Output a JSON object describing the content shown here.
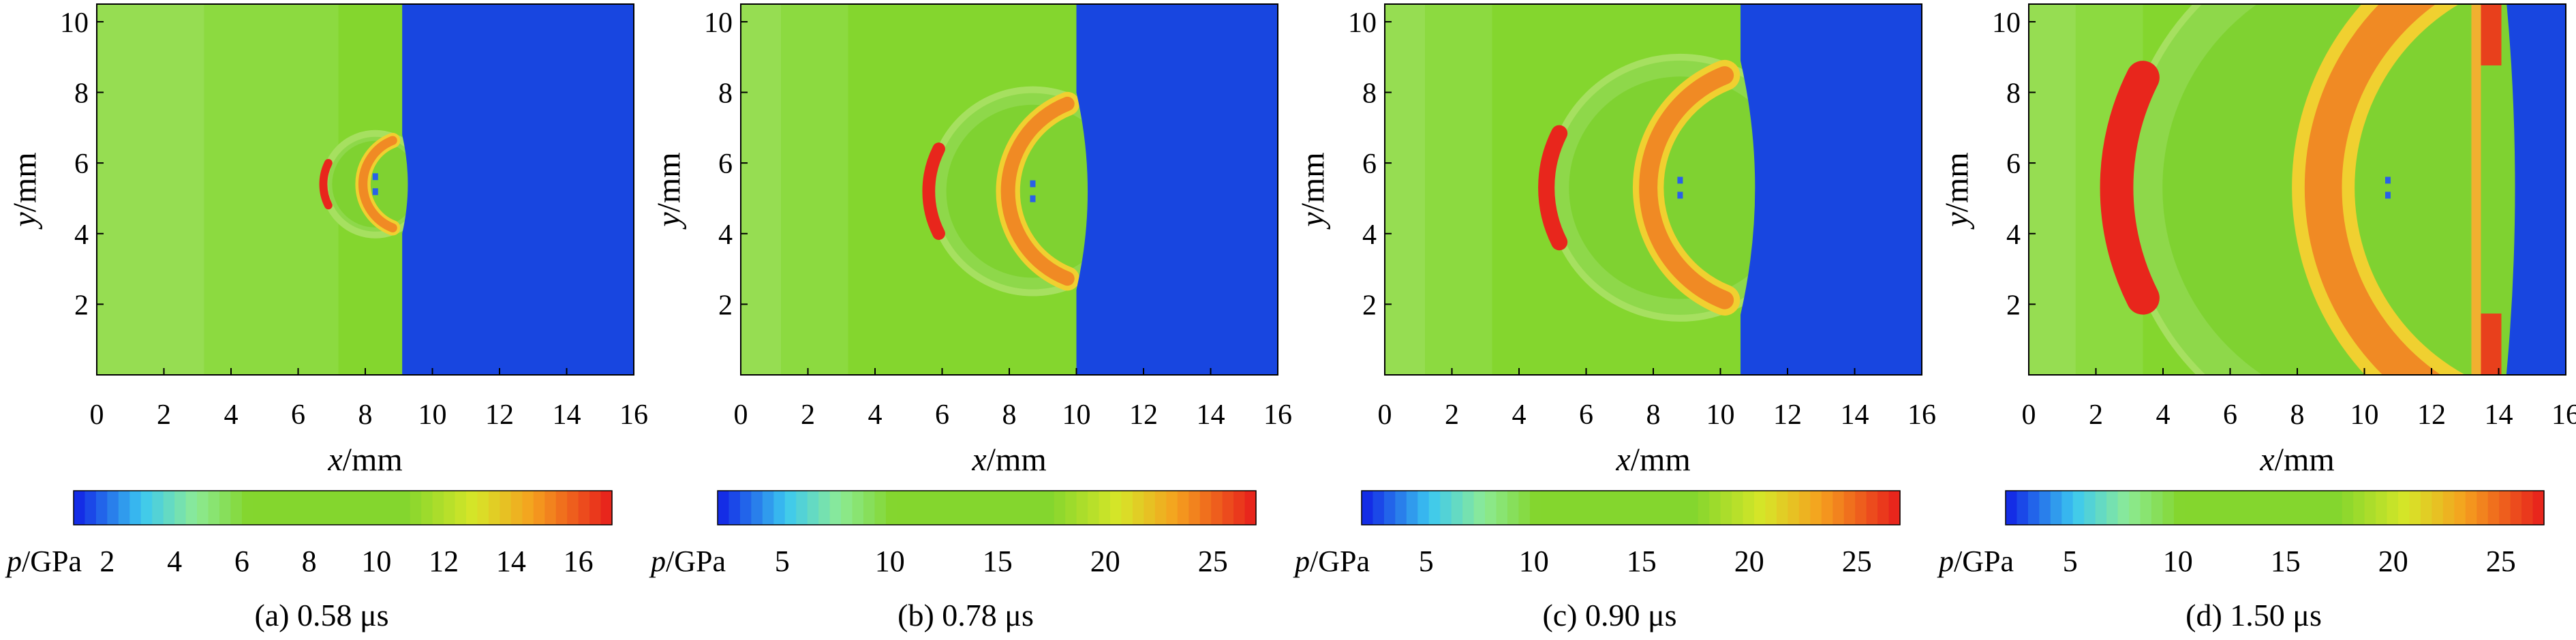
{
  "figure": {
    "panels": [
      {
        "caption": "(a) 0.58 μs",
        "x_tick_labels": [
          "0",
          "2",
          "4",
          "6",
          "8",
          "10",
          "12",
          "14",
          "16"
        ],
        "y_tick_labels": [
          "2",
          "4",
          "6",
          "8",
          "10"
        ],
        "colorbar_ticks": [
          "2",
          "4",
          "6",
          "8",
          "10",
          "12",
          "14",
          "16"
        ]
      },
      {
        "caption": "(b) 0.78 μs",
        "x_tick_labels": [
          "0",
          "2",
          "4",
          "6",
          "8",
          "10",
          "12",
          "14",
          "16"
        ],
        "y_tick_labels": [
          "2",
          "4",
          "6",
          "8",
          "10"
        ],
        "colorbar_ticks": [
          "5",
          "10",
          "15",
          "20",
          "25"
        ]
      },
      {
        "caption": "(c) 0.90 μs",
        "x_tick_labels": [
          "0",
          "2",
          "4",
          "6",
          "8",
          "10",
          "12",
          "14",
          "16"
        ],
        "y_tick_labels": [
          "2",
          "4",
          "6",
          "8",
          "10"
        ],
        "colorbar_ticks": [
          "5",
          "10",
          "15",
          "20",
          "25"
        ]
      },
      {
        "caption": "(d) 1.50 μs",
        "x_tick_labels": [
          "0",
          "2",
          "4",
          "6",
          "8",
          "10",
          "12",
          "14",
          "16"
        ],
        "y_tick_labels": [
          "2",
          "4",
          "6",
          "8",
          "10"
        ],
        "colorbar_ticks": [
          "5",
          "10",
          "15",
          "20",
          "25"
        ]
      }
    ],
    "xlabel_var": "x",
    "xlabel_unit": "/mm",
    "ylabel_var": "y",
    "ylabel_unit": "/mm",
    "colorbar_var": "p",
    "colorbar_unit": "/GPa",
    "colors": {
      "background_field": "#84d62e",
      "right_region": "#1846e0",
      "hot": "#e8261c"
    }
  },
  "chart_data": [
    {
      "type": "heatmap",
      "caption": "(a) 0.58 μs",
      "xlabel": "x/mm",
      "ylabel": "y/mm",
      "colorbar_label": "p/GPa",
      "xlim": [
        0,
        16
      ],
      "ylim": [
        0,
        10.5
      ],
      "x_ticks": [
        0,
        2,
        4,
        6,
        8,
        10,
        12,
        14,
        16
      ],
      "y_ticks": [
        2,
        4,
        6,
        8,
        10
      ],
      "colorbar_range": [
        1,
        17
      ],
      "colorbar_ticks": [
        2,
        4,
        6,
        8,
        10,
        12,
        14,
        16
      ],
      "interface_x": 9.1,
      "wave_center": [
        8.3,
        5.4
      ],
      "front_radius": 1.4,
      "band_boundaries_x": [
        3.2,
        7.2
      ],
      "hot_zone_value_max": 16
    },
    {
      "type": "heatmap",
      "caption": "(b) 0.78 μs",
      "xlabel": "x/mm",
      "ylabel": "y/mm",
      "colorbar_label": "p/GPa",
      "xlim": [
        0,
        16
      ],
      "ylim": [
        0,
        10.5
      ],
      "x_ticks": [
        0,
        2,
        4,
        6,
        8,
        10,
        12,
        14,
        16
      ],
      "y_ticks": [
        2,
        4,
        6,
        8,
        10
      ],
      "colorbar_range": [
        2,
        27
      ],
      "colorbar_ticks": [
        5,
        10,
        15,
        20,
        25
      ],
      "interface_x": 10.0,
      "wave_center": [
        8.7,
        5.2
      ],
      "front_radius": 2.8,
      "band_boundaries_x": [
        1.2,
        3.2
      ],
      "hot_zone_value_max": 25
    },
    {
      "type": "heatmap",
      "caption": "(c) 0.90 μs",
      "xlabel": "x/mm",
      "ylabel": "y/mm",
      "colorbar_label": "p/GPa",
      "xlim": [
        0,
        16
      ],
      "ylim": [
        0,
        10.5
      ],
      "x_ticks": [
        0,
        2,
        4,
        6,
        8,
        10,
        12,
        14,
        16
      ],
      "y_ticks": [
        2,
        4,
        6,
        8,
        10
      ],
      "colorbar_range": [
        2,
        27
      ],
      "colorbar_ticks": [
        5,
        10,
        15,
        20,
        25
      ],
      "interface_x": 10.6,
      "wave_center": [
        8.8,
        5.3
      ],
      "front_radius": 3.6,
      "band_boundaries_x": [
        1.2,
        3.2
      ],
      "hot_zone_value_max": 25
    },
    {
      "type": "heatmap",
      "caption": "(d) 1.50 μs",
      "xlabel": "x/mm",
      "ylabel": "y/mm",
      "colorbar_label": "p/GPa",
      "xlim": [
        0,
        16
      ],
      "ylim": [
        0,
        10.5
      ],
      "x_ticks": [
        0,
        2,
        4,
        6,
        8,
        10,
        12,
        14,
        16
      ],
      "y_ticks": [
        2,
        4,
        6,
        8,
        10
      ],
      "colorbar_range": [
        2,
        27
      ],
      "colorbar_ticks": [
        5,
        10,
        15,
        20,
        25
      ],
      "interface_x": 14.0,
      "wave_center": [
        10.7,
        5.3
      ],
      "front_radius": 7.3,
      "band_boundaries_x": [
        1.4,
        3.4
      ],
      "hot_zone_value_max": 25
    }
  ]
}
